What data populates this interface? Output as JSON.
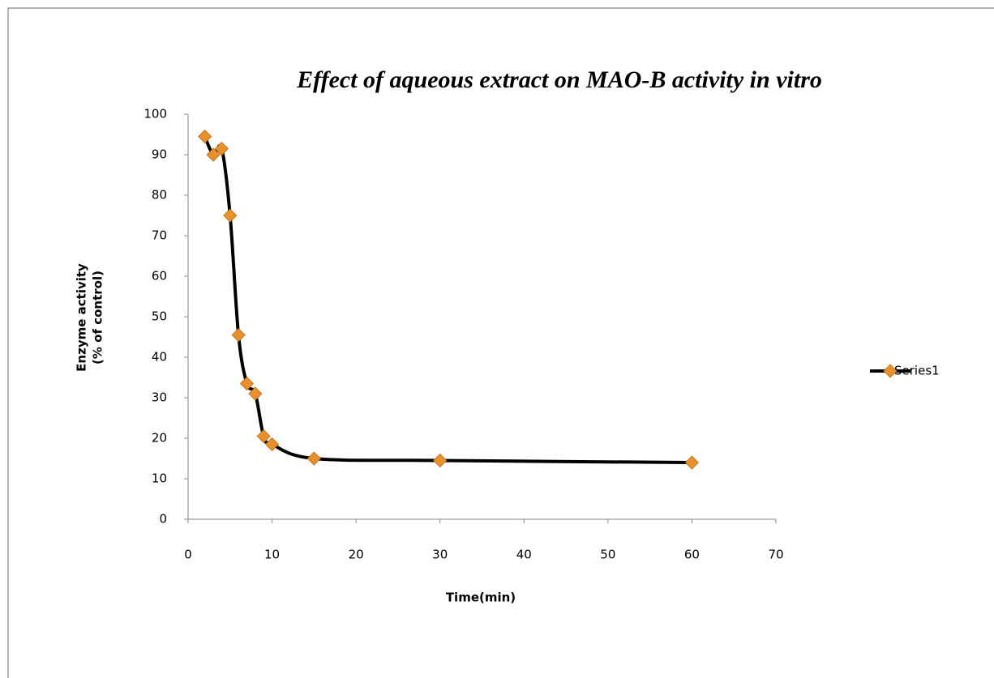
{
  "chart_data": {
    "type": "scatter-line",
    "title": "Effect of aqueous extract on MAO-B activity in vitro",
    "xlabel": "Time(min)",
    "ylabel": [
      "Enzyme activity",
      "(% of control)"
    ],
    "series": [
      {
        "name": "Series1",
        "color": "#e8912c",
        "line_color": "#000000",
        "x": [
          2,
          3,
          4,
          5,
          6,
          7,
          8,
          9,
          10,
          15,
          30,
          60
        ],
        "values": [
          94.5,
          90,
          91.5,
          75,
          45.5,
          33.5,
          31,
          20.5,
          18.5,
          15,
          14.5,
          14
        ]
      }
    ],
    "xlim": [
      0,
      70
    ],
    "xticks": [
      0,
      10,
      20,
      30,
      40,
      50,
      60,
      70
    ],
    "ylim": [
      0,
      100
    ],
    "yticks": [
      0,
      10,
      20,
      30,
      40,
      50,
      60,
      70,
      80,
      90,
      100
    ],
    "legend": "right"
  }
}
